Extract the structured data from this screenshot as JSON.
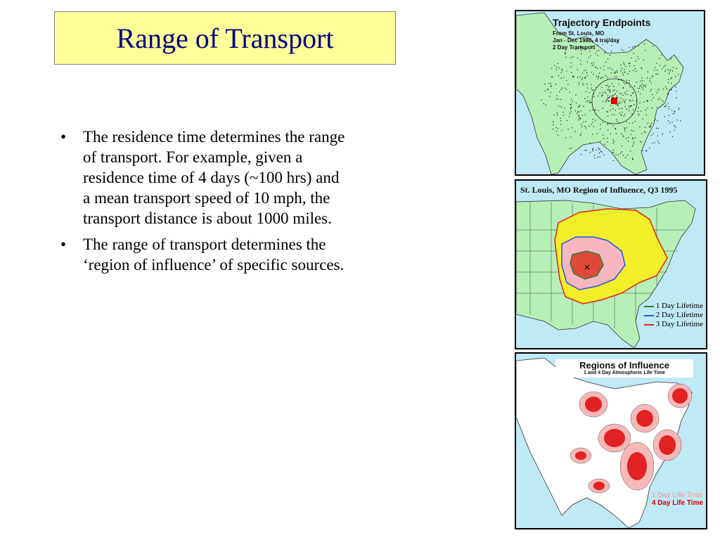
{
  "slide": {
    "title": "Range of Transport",
    "bullets": [
      "The residence time determines the range of transport. For example, given a residence time of 4 days (~100 hrs) and a mean transport speed of 10 mph, the transport distance is about 1000 miles.",
      "The range of transport determines the ‘region of influence’ of specific sources."
    ],
    "bullet_glyph": "•"
  },
  "map_trajectory": {
    "title": "Trajectory Endpoints",
    "subtitle_lines": [
      "From St. Louis, MO",
      "Jan - Dec 1980, 4 traj/day",
      "2 Day Transport"
    ],
    "colors": {
      "land": "#b6f0b6",
      "water": "#bfe9f5",
      "dots": "#1a1a1a",
      "source": "#e00000"
    }
  },
  "map_region": {
    "title": "St. Louis, MO Region of Influence, Q3 1995",
    "legend": [
      {
        "label": "1 Day Lifetime",
        "color": "#2e7d32"
      },
      {
        "label": "2 Day Lifetime",
        "color": "#2255dd"
      },
      {
        "label": "3 Day Lifetime",
        "color": "#e02020"
      }
    ],
    "colors": {
      "zone3": "#f5ef2a",
      "zone2": "#f6b7c1",
      "zone1": "#e0483c"
    }
  },
  "map_regions": {
    "title": "Regions of Influence",
    "subtitle": "1 and 4 Day Atmospheric Life Time",
    "legend": [
      {
        "label": "1 Day Life Time",
        "color": "#f6a6a6"
      },
      {
        "label": "4 Day Life Time",
        "color": "#e00000"
      }
    ]
  }
}
